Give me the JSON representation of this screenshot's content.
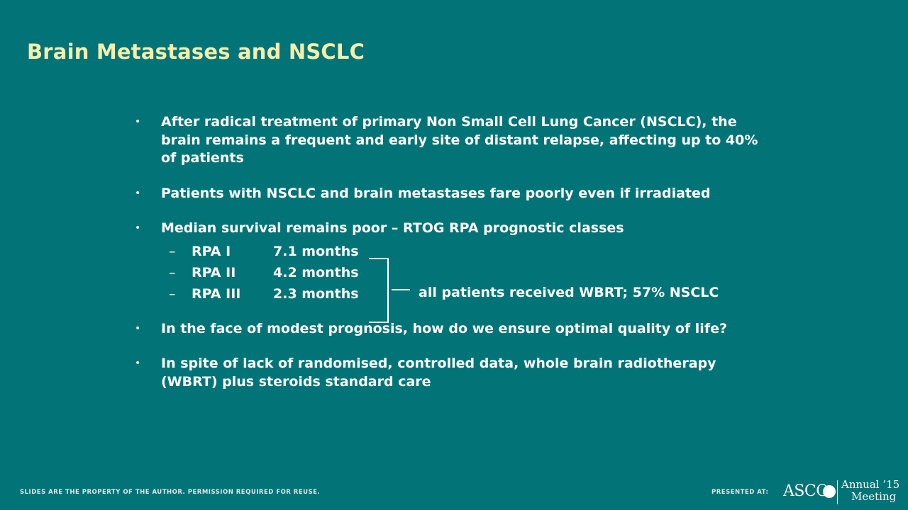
{
  "slide": {
    "title": "Brain Metastases and NSCLC",
    "bullets": [
      "After radical treatment of primary Non Small Cell Lung Cancer (NSCLC), the brain remains a frequent and early site of distant relapse, affecting up to 40% of patients",
      "Patients with NSCLC and brain metastases fare poorly even if irradiated",
      "Median survival remains poor – RTOG RPA prognostic classes",
      "In the face of modest prognosis, how do we ensure optimal quality of life?",
      "In spite of lack of randomised, controlled data, whole brain radiotherapy (WBRT) plus steroids standard care"
    ],
    "bullet_marker": "•",
    "sub_marker": "–",
    "rpa_classes": [
      {
        "label": "RPA I",
        "months": "7.1 months"
      },
      {
        "label": "RPA II",
        "months": "4.2 months"
      },
      {
        "label": "RPA III",
        "months": "2.3 months"
      }
    ],
    "bracket_note": "all patients received WBRT; 57% NSCLC"
  },
  "footer": {
    "disclaimer": "SLIDES ARE THE PROPERTY OF THE AUTHOR. PERMISSION REQUIRED FOR REUSE.",
    "presented_at": "PRESENTED AT:",
    "logo_asco": "ASCO",
    "logo_annual": "Annual ’15",
    "logo_meeting": "Meeting"
  },
  "colors": {
    "background": "#027477",
    "title": "#f6eeaa",
    "text": "#ffffff"
  }
}
